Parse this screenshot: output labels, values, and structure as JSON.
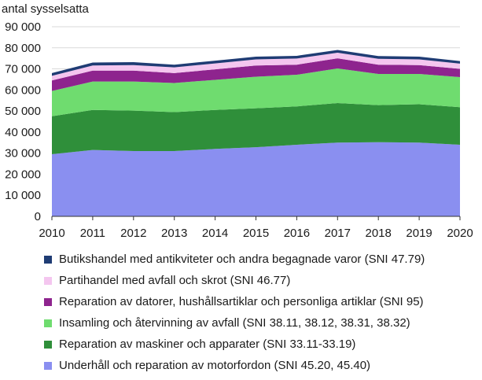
{
  "chart_data": {
    "type": "area",
    "stacked": true,
    "ylabel": "antal sysselsatta",
    "xlabel": "",
    "x": [
      2010,
      2011,
      2012,
      2013,
      2014,
      2015,
      2016,
      2017,
      2018,
      2019,
      2020
    ],
    "x_tick_labels": [
      "2010",
      "2011",
      "2012",
      "2013",
      "2014",
      "2015",
      "2016",
      "2017",
      "2018",
      "2019",
      "2020"
    ],
    "ylim": [
      0,
      90000
    ],
    "y_ticks": [
      0,
      10000,
      20000,
      30000,
      40000,
      50000,
      60000,
      70000,
      80000,
      90000
    ],
    "y_tick_labels": [
      "0",
      "10 000",
      "20 000",
      "30 000",
      "40 000",
      "50 000",
      "60 000",
      "70 000",
      "80 000",
      "90 000"
    ],
    "grid": "horizontal",
    "legend_position": "bottom",
    "series": [
      {
        "name": "Underhåll och reparation av motorfordon (SNI 45.20, 45.40)",
        "color": "#8a8ff0",
        "values": [
          29500,
          31500,
          31000,
          31000,
          32000,
          32800,
          34000,
          35000,
          35200,
          35000,
          34000
        ]
      },
      {
        "name": "Reparation av maskiner och apparater (SNI 33.11-33.19)",
        "color": "#2f8f3a",
        "values": [
          18000,
          19000,
          19200,
          18500,
          18500,
          18500,
          18200,
          18800,
          17600,
          18200,
          17800
        ]
      },
      {
        "name": "Insamling och återvinning av avfall (SNI 38.11, 38.12, 38.31, 38.32)",
        "color": "#6fdc6f",
        "values": [
          12000,
          13500,
          13800,
          13800,
          14300,
          15000,
          15000,
          16400,
          14800,
          14400,
          14300
        ]
      },
      {
        "name": "Reparation av datorer, hushållsartiklar och personliga artiklar (SNI 95)",
        "color": "#8e248e",
        "values": [
          5000,
          5200,
          5200,
          4700,
          5000,
          5300,
          4800,
          4800,
          4400,
          4200,
          3900
        ]
      },
      {
        "name": "Partihandel med avfall och skrot (SNI 46.77)",
        "color": "#f4c6ef",
        "values": [
          2200,
          2400,
          2600,
          2700,
          2800,
          2900,
          2900,
          2700,
          2800,
          2700,
          2500
        ]
      },
      {
        "name": "Butikshandel med antikviteter och andra begagnade varor (SNI 47.79)",
        "color": "#1f3c74",
        "values": [
          1300,
          1400,
          1400,
          1300,
          1300,
          1300,
          1300,
          1300,
          1300,
          1300,
          1200
        ]
      }
    ]
  }
}
